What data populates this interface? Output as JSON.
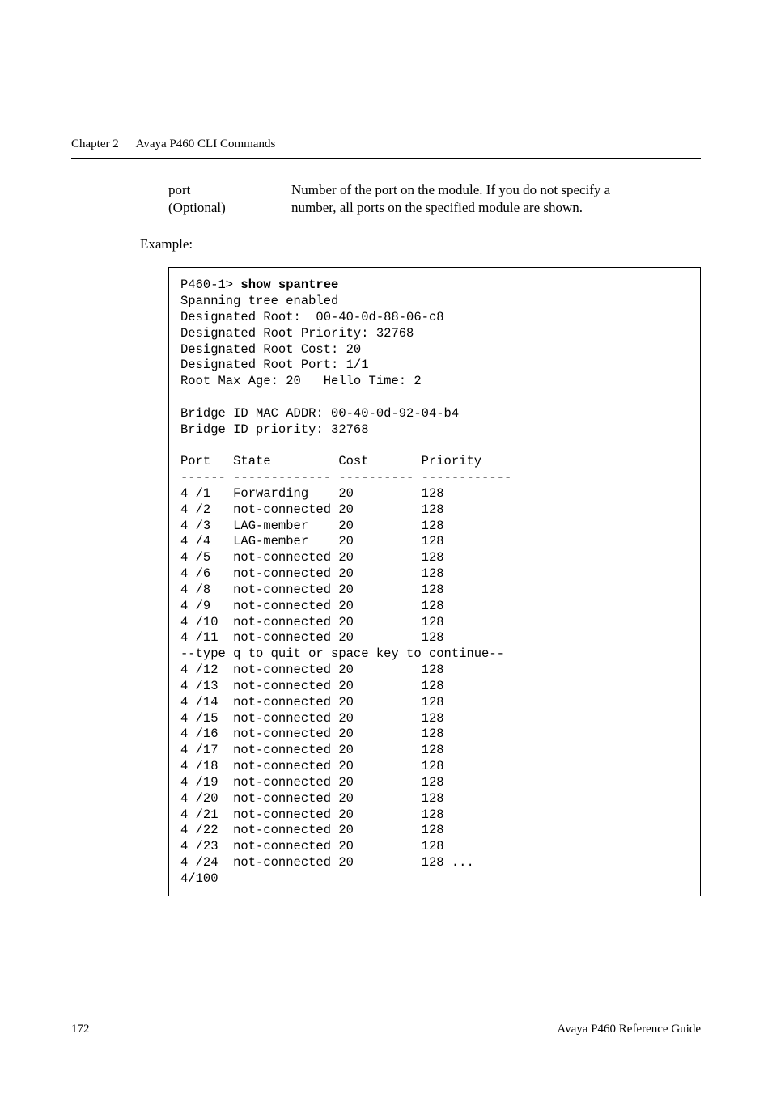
{
  "header": {
    "chapter_label": "Chapter 2",
    "chapter_title": "Avaya P460 CLI Commands"
  },
  "param": {
    "name_line1": "port",
    "name_line2": "(Optional)",
    "desc_line1": "Number of the port on the module. If you do not specify a",
    "desc_line2": "number, all ports on the specified module are shown."
  },
  "example_label": "Example:",
  "terminal": {
    "prompt": "P460-1> ",
    "command": "show spantree",
    "intro": [
      "Spanning tree enabled",
      "Designated Root:  00-40-0d-88-06-c8",
      "Designated Root Priority: 32768",
      "Designated Root Cost: 20",
      "Designated Root Port: 1/1",
      "Root Max Age: 20   Hello Time: 2",
      "",
      "Bridge ID MAC ADDR: 00-40-0d-92-04-b4",
      "Bridge ID priority: 32768",
      ""
    ],
    "table_header": "Port   State         Cost       Priority",
    "table_divider": "------ ------------- ---------- ------------",
    "rows_before_pause": [
      "4 /1   Forwarding    20         128",
      "4 /2   not-connected 20         128",
      "4 /3   LAG-member    20         128",
      "4 /4   LAG-member    20         128",
      "4 /5   not-connected 20         128",
      "4 /6   not-connected 20         128",
      "4 /8   not-connected 20         128",
      "4 /9   not-connected 20         128",
      "4 /10  not-connected 20         128",
      "4 /11  not-connected 20         128"
    ],
    "pause_line": "--type q to quit or space key to continue--",
    "rows_after_pause": [
      "4 /12  not-connected 20         128",
      "4 /13  not-connected 20         128",
      "4 /14  not-connected 20         128",
      "4 /15  not-connected 20         128",
      "4 /16  not-connected 20         128",
      "4 /17  not-connected 20         128",
      "4 /18  not-connected 20         128",
      "4 /19  not-connected 20         128",
      "4 /20  not-connected 20         128",
      "4 /21  not-connected 20         128",
      "4 /22  not-connected 20         128",
      "4 /23  not-connected 20         128",
      "4 /24  not-connected 20         128 ...",
      "4/100"
    ]
  },
  "footer": {
    "page_number": "172",
    "doc_title": "Avaya P460 Reference Guide"
  }
}
